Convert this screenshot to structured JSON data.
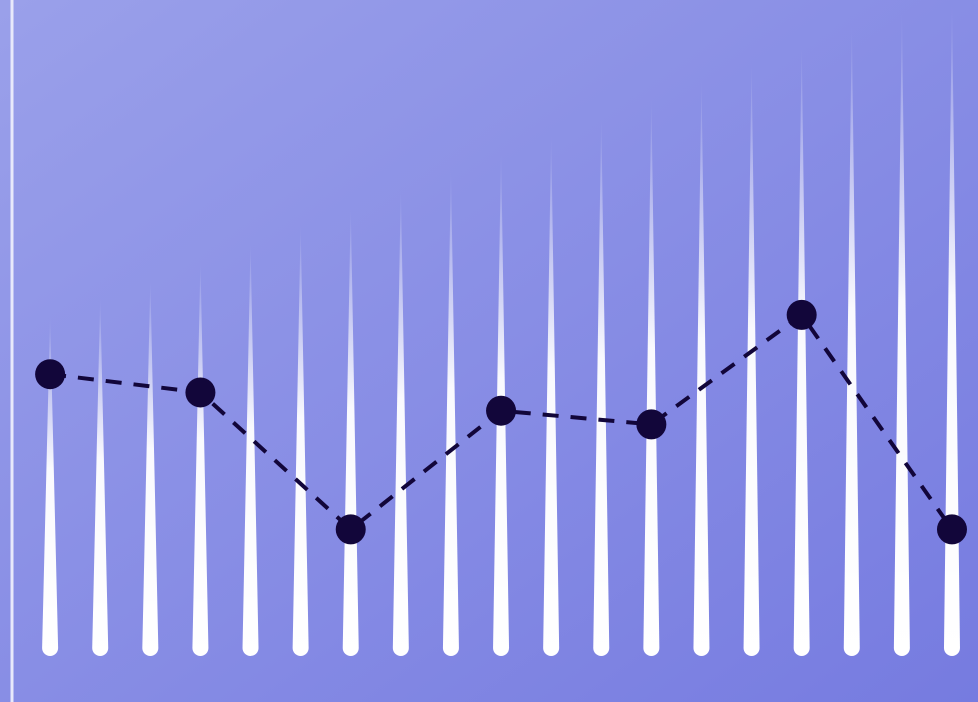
{
  "chart_data": {
    "type": "line",
    "title": "",
    "xlabel": "",
    "ylabel": "",
    "grid": false,
    "colors": {
      "background_top_left": "#9aa0ea",
      "background_bottom_right": "#767be0",
      "axis": "#e8e9fb",
      "spike": "#ffffff",
      "marker": "#12063a",
      "line": "#12063a"
    },
    "spikes": {
      "x": [
        1,
        2,
        3,
        4,
        5,
        6,
        7,
        8,
        9,
        10,
        11,
        12,
        13,
        14,
        15,
        16,
        17,
        18,
        19
      ],
      "values": [
        7.3,
        7.7,
        8.1,
        8.5,
        8.9,
        9.3,
        9.7,
        10.1,
        10.5,
        10.9,
        11.3,
        11.7,
        12.1,
        12.5,
        12.9,
        13.3,
        13.7,
        14.0,
        14.2
      ]
    },
    "series": [
      {
        "x": [
          1,
          4,
          7,
          10,
          13,
          16,
          19
        ],
        "values": [
          6.0,
          5.6,
          2.6,
          5.2,
          4.9,
          7.3,
          2.6
        ]
      }
    ],
    "xlim": [
      0,
      19.2
    ],
    "ylim": [
      0,
      14.2
    ]
  }
}
